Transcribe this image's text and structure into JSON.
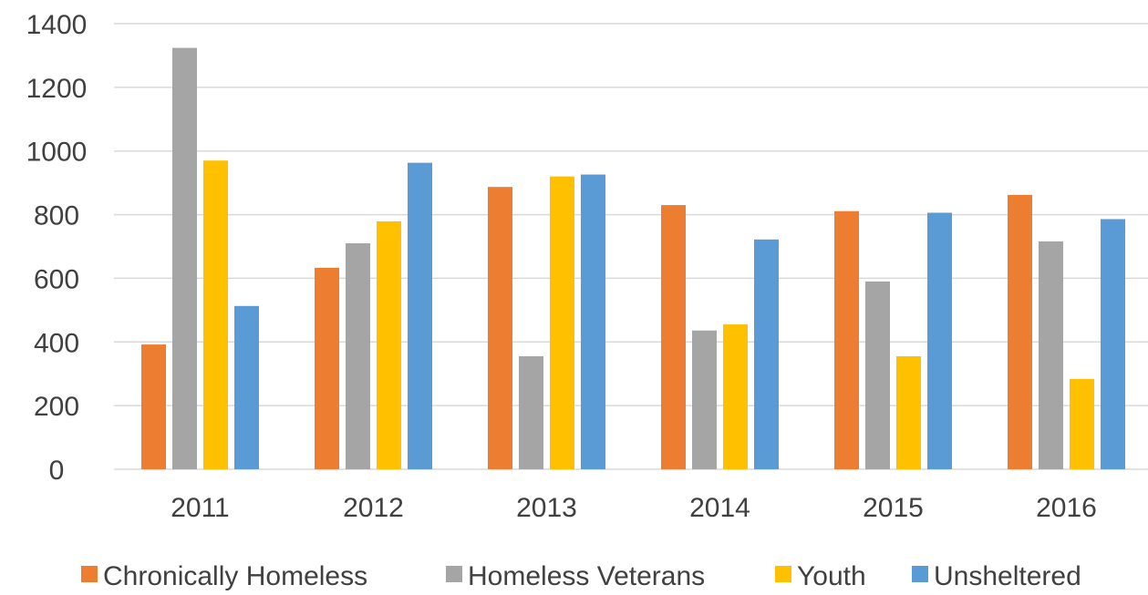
{
  "chart_data": {
    "type": "bar",
    "title": "",
    "xlabel": "",
    "ylabel": "",
    "categories": [
      "2011",
      "2012",
      "2013",
      "2014",
      "2015",
      "2016"
    ],
    "ylim": [
      0,
      1400
    ],
    "yticks": [
      0,
      200,
      400,
      600,
      800,
      1000,
      1200,
      1400
    ],
    "grid": true,
    "legend_position": "bottom",
    "series": [
      {
        "name": "Chronically Homeless",
        "color": "#ED7D31",
        "values": [
          392,
          633,
          887,
          830,
          811,
          862
        ]
      },
      {
        "name": "Homeless Veterans",
        "color": "#A5A5A5",
        "values": [
          1324,
          710,
          355,
          436,
          590,
          716
        ]
      },
      {
        "name": "Youth",
        "color": "#FFC000",
        "values": [
          970,
          779,
          920,
          455,
          355,
          284
        ]
      },
      {
        "name": "Unsheltered",
        "color": "#5B9BD5",
        "values": [
          513,
          963,
          926,
          722,
          806,
          786
        ]
      }
    ],
    "gridline_color": "#D9D9D9"
  }
}
